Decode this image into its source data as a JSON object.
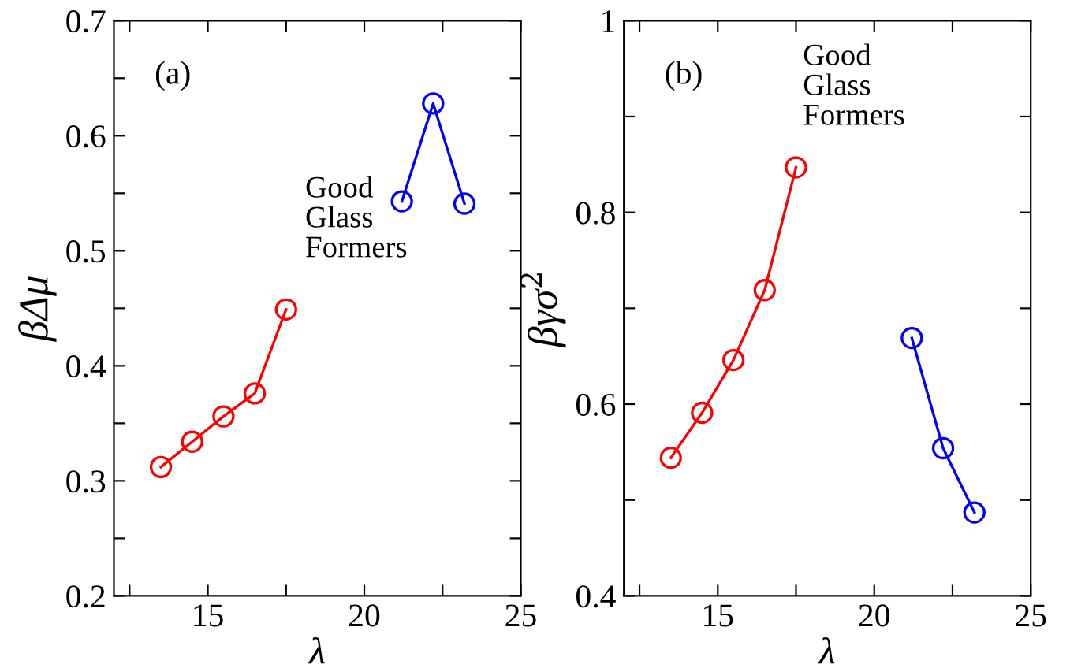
{
  "chart_data": [
    {
      "type": "line",
      "xlabel": "λ",
      "ylabel": "βΔμ",
      "marker": "circle",
      "line_style": "solid",
      "grid": false,
      "legend": false,
      "xlim": [
        12,
        25
      ],
      "xticks": [
        {
          "value": 12.5,
          "label": null
        },
        15,
        {
          "value": 17.5,
          "label": null
        },
        20,
        {
          "value": 22.5,
          "label": null
        },
        25
      ],
      "ylim": [
        0.2,
        0.7
      ],
      "yticks": [
        0.2,
        {
          "value": 0.25,
          "label": null
        },
        0.3,
        {
          "value": 0.35,
          "label": null
        },
        0.4,
        {
          "value": 0.45,
          "label": null
        },
        0.5,
        {
          "value": 0.55,
          "label": null
        },
        0.6,
        {
          "value": 0.65,
          "label": null
        },
        0.7
      ],
      "series": [
        {
          "color": "#ff0000",
          "x": [
            13.5,
            14.5,
            15.5,
            16.5,
            17.5
          ],
          "values": [
            0.312,
            0.334,
            0.356,
            0.376,
            0.449
          ]
        },
        {
          "color": "#0000ff",
          "x": [
            21.2,
            22.2,
            23.2
          ],
          "values": [
            0.543,
            0.628,
            0.541
          ]
        }
      ],
      "annotations": [
        "(a)",
        "Good\nGlass\nFormers"
      ]
    },
    {
      "type": "line",
      "xlabel": "λ",
      "ylabel": "βγσ$^{2}$",
      "marker": "circle",
      "line_style": "solid",
      "grid": false,
      "legend": false,
      "xlim": [
        12,
        25
      ],
      "xticks": [
        {
          "value": 12.5,
          "label": null
        },
        15,
        {
          "value": 17.5,
          "label": null
        },
        20,
        {
          "value": 22.5,
          "label": null
        },
        25
      ],
      "ylim": [
        0.4,
        1
      ],
      "yticks": [
        0.4,
        {
          "value": 0.5,
          "label": null
        },
        0.6,
        {
          "value": 0.7,
          "label": null
        },
        0.8,
        {
          "value": 0.9,
          "label": null
        },
        1
      ],
      "series": [
        {
          "color": "#ff0000",
          "x": [
            13.5,
            14.5,
            15.5,
            16.5,
            17.5
          ],
          "values": [
            0.544,
            0.591,
            0.646,
            0.719,
            0.847
          ]
        },
        {
          "color": "#0000ff",
          "x": [
            21.2,
            22.2,
            23.2
          ],
          "values": [
            0.669,
            0.554,
            0.487
          ]
        }
      ],
      "annotations": [
        "(b)",
        "Good\nGlass\nFormers"
      ]
    }
  ]
}
